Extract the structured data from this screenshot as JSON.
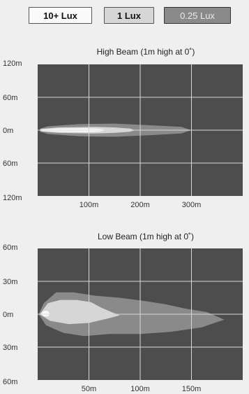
{
  "legend": {
    "items": [
      {
        "label": "10+ Lux",
        "color": "#fafafa"
      },
      {
        "label": "1 Lux",
        "color": "#d6d6d6"
      },
      {
        "label": "0.25 Lux",
        "color": "#8a8a8a"
      }
    ]
  },
  "colors": {
    "plot_bg": "#4d4d4d",
    "grid": "#d8d8d8",
    "lux_0_25": "#8a8a8a",
    "lux_1": "#d6d6d6",
    "lux_10": "#fafafa"
  },
  "chart_data": [
    {
      "type": "area",
      "title": "High Beam (1m high at 0˚)",
      "xlabel": "",
      "ylabel": "",
      "x_ticks": [
        "100m",
        "200m",
        "300m"
      ],
      "y_ticks": [
        "120m",
        "60m",
        "0m",
        "60m",
        "120m"
      ],
      "xlim": [
        0,
        400
      ],
      "ylim": [
        -120,
        120
      ],
      "grid": true,
      "series": [
        {
          "name": "0.25 Lux",
          "points": [
            [
              5,
              -3
            ],
            [
              20,
              -7
            ],
            [
              80,
              -11
            ],
            [
              150,
              -12
            ],
            [
              220,
              -9
            ],
            [
              280,
              -6
            ],
            [
              300,
              0
            ],
            [
              280,
              6
            ],
            [
              220,
              9
            ],
            [
              150,
              12
            ],
            [
              80,
              11
            ],
            [
              20,
              7
            ],
            [
              5,
              3
            ]
          ]
        },
        {
          "name": "1 Lux",
          "points": [
            [
              5,
              -2
            ],
            [
              40,
              -5
            ],
            [
              110,
              -6
            ],
            [
              150,
              -5
            ],
            [
              180,
              -3
            ],
            [
              190,
              0
            ],
            [
              180,
              3
            ],
            [
              150,
              5
            ],
            [
              110,
              6
            ],
            [
              40,
              5
            ],
            [
              5,
              2
            ]
          ]
        },
        {
          "name": "10+ Lux",
          "points": [
            [
              8,
              -1.5
            ],
            [
              40,
              -3
            ],
            [
              90,
              -3.5
            ],
            [
              120,
              -2.5
            ],
            [
              135,
              0
            ],
            [
              120,
              2.5
            ],
            [
              90,
              3.5
            ],
            [
              40,
              3
            ],
            [
              8,
              1.5
            ]
          ]
        }
      ]
    },
    {
      "type": "area",
      "title": "Low Beam (1m high at 0˚)",
      "xlabel": "",
      "ylabel": "",
      "x_ticks": [
        "50m",
        "100m",
        "150m"
      ],
      "y_ticks": [
        "60m",
        "30m",
        "0m",
        "30m",
        "60m"
      ],
      "xlim": [
        0,
        200
      ],
      "ylim": [
        -60,
        60
      ],
      "grid": true,
      "series": [
        {
          "name": "0.25 Lux",
          "points": [
            [
              1,
              0
            ],
            [
              6,
              10
            ],
            [
              18,
              20
            ],
            [
              35,
              20
            ],
            [
              55,
              17
            ],
            [
              80,
              15
            ],
            [
              105,
              12
            ],
            [
              125,
              9
            ],
            [
              145,
              5
            ],
            [
              165,
              2
            ],
            [
              182,
              -5
            ],
            [
              160,
              -12
            ],
            [
              130,
              -16
            ],
            [
              100,
              -18
            ],
            [
              70,
              -18
            ],
            [
              45,
              -20
            ],
            [
              25,
              -17
            ],
            [
              8,
              -10
            ]
          ]
        },
        {
          "name": "1 Lux",
          "points": [
            [
              2,
              0
            ],
            [
              10,
              10
            ],
            [
              22,
              13
            ],
            [
              38,
              13
            ],
            [
              52,
              11
            ],
            [
              62,
              6
            ],
            [
              72,
              2
            ],
            [
              80,
              -1
            ],
            [
              68,
              -4
            ],
            [
              50,
              -8
            ],
            [
              30,
              -9
            ],
            [
              12,
              -6
            ]
          ]
        },
        {
          "name": "10+ Lux",
          "points": [
            [
              3,
              0
            ],
            [
              6,
              3
            ],
            [
              10,
              3
            ],
            [
              12,
              0
            ],
            [
              10,
              -2
            ],
            [
              6,
              -2
            ]
          ]
        }
      ]
    }
  ]
}
